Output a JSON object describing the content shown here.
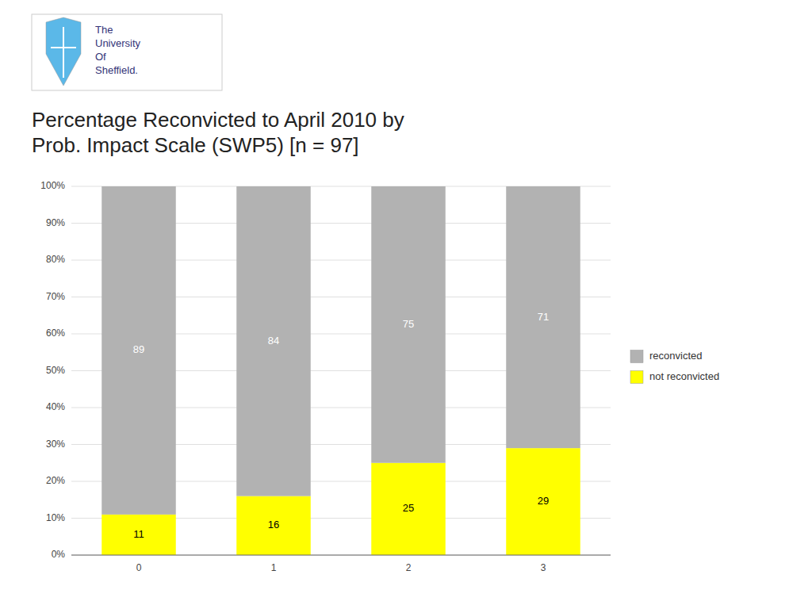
{
  "chart_data": {
    "type": "bar",
    "stacked": true,
    "title": "Percentage Reconvicted to April 2010 by\nProb. Impact Scale (SWP5) [n = 97]",
    "annotations": [
      "The\nUniversity\nOf\nSheffield."
    ],
    "categories": [
      "0",
      "1",
      "2",
      "3"
    ],
    "series": [
      {
        "name": "not reconvicted",
        "color": "#ffff00",
        "values": [
          11,
          16,
          25,
          29
        ]
      },
      {
        "name": "reconvicted",
        "color": "#b2b2b2",
        "values": [
          89,
          84,
          75,
          71
        ]
      }
    ],
    "ylim": [
      0,
      100
    ],
    "yticks": [
      {
        "value": 0,
        "label": "0%"
      },
      {
        "value": 10,
        "label": "10%"
      },
      {
        "value": 20,
        "label": "20%"
      },
      {
        "value": 30,
        "label": "30%"
      },
      {
        "value": 40,
        "label": "40%"
      },
      {
        "value": 50,
        "label": "50%"
      },
      {
        "value": 60,
        "label": "60%"
      },
      {
        "value": 70,
        "label": "70%"
      },
      {
        "value": 80,
        "label": "80%"
      },
      {
        "value": 90,
        "label": "90%"
      },
      {
        "value": 100,
        "label": "100%"
      }
    ],
    "grid": true,
    "legend": "right",
    "data_labels": true
  }
}
